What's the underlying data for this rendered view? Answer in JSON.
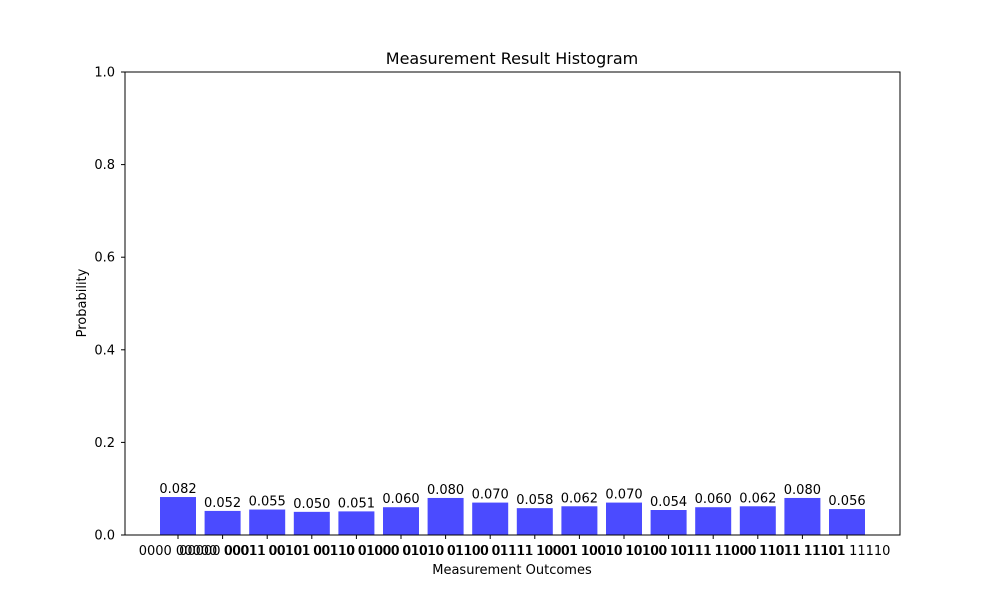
{
  "chart_data": {
    "type": "bar",
    "title": "Measurement Result Histogram",
    "xlabel": "Measurement Outcomes",
    "ylabel": "Probability",
    "ylim": [
      0,
      1.0
    ],
    "yticks": [
      "0.0",
      "0.2",
      "0.4",
      "0.6",
      "0.8",
      "1.0"
    ],
    "categories": [
      "0000 00000",
      "00000 00011",
      "00011 00101",
      "00101 00110",
      "00110 01000",
      "01000 01010",
      "01010 01100",
      "01100 01111",
      "01111 10001",
      "10001 10010",
      "10010 10100",
      "10100 10111",
      "10111 11000",
      "11000 11011",
      "11011 11101",
      "11101 11110"
    ],
    "values": [
      0.082,
      0.052,
      0.055,
      0.05,
      0.051,
      0.06,
      0.08,
      0.07,
      0.058,
      0.062,
      0.07,
      0.054,
      0.06,
      0.062,
      0.08,
      0.056
    ],
    "value_labels": [
      "0.082",
      "0.052",
      "0.055",
      "0.050",
      "0.051",
      "0.060",
      "0.080",
      "0.070",
      "0.058",
      "0.062",
      "0.070",
      "0.054",
      "0.060",
      "0.062",
      "0.080",
      "0.056"
    ],
    "bar_color": "#4b4bff",
    "grid": false,
    "legend": "none"
  }
}
